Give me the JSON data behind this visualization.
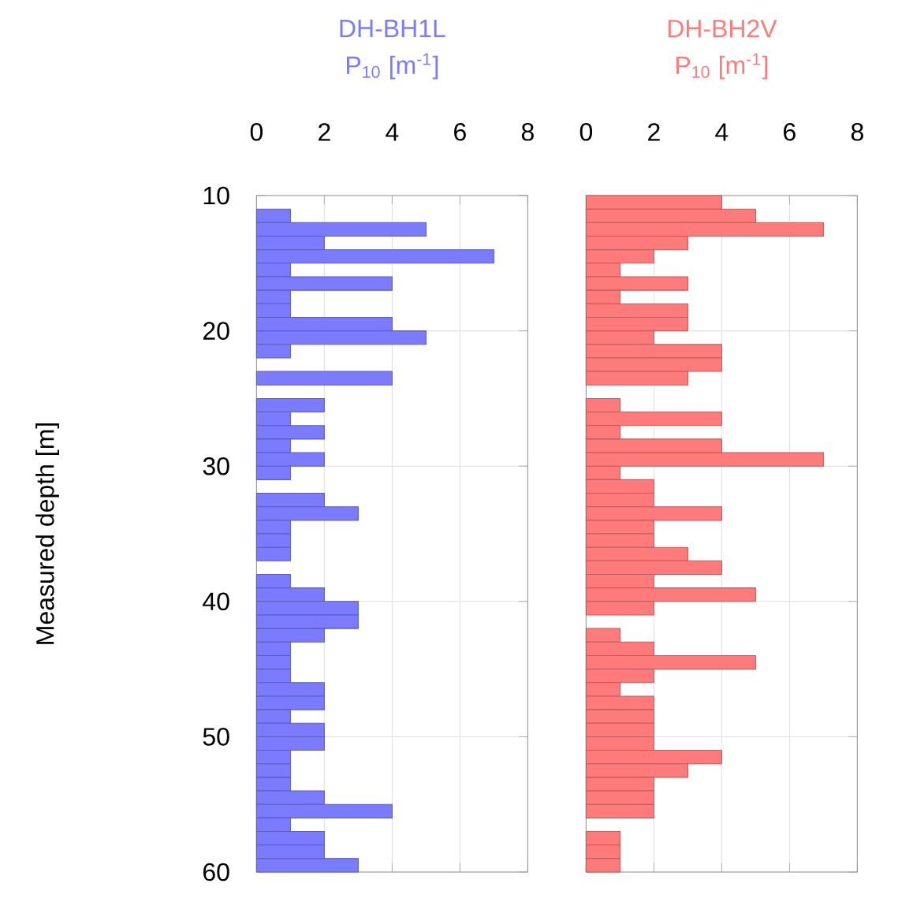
{
  "chart_data": [
    {
      "type": "bar",
      "orientation": "horizontal",
      "title": "DH-BH1L",
      "subtitle": "P$_{10}$ [m$^{-1}$]",
      "ylabel": "Measured depth [m]",
      "x": [
        11.5,
        12.5,
        13.5,
        14.5,
        15.5,
        16.5,
        17.5,
        18.5,
        19.5,
        20.5,
        21.5,
        22.5,
        23.5,
        24.5,
        25.5,
        26.5,
        27.5,
        28.5,
        29.5,
        30.5,
        31.5,
        32.5,
        33.5,
        34.5,
        35.5,
        36.5,
        37.5,
        38.5,
        39.5,
        40.5,
        41.5,
        42.5,
        43.5,
        44.5,
        45.5,
        46.5,
        47.5,
        48.5,
        49.5,
        50.5,
        51.5,
        52.5,
        53.5,
        54.5,
        55.5,
        56.5,
        57.5,
        58.5,
        59.5
      ],
      "series": [
        {
          "color": "#7b7bff",
          "values": [
            1,
            5,
            2,
            7,
            1,
            4,
            1,
            1,
            4,
            5,
            1,
            null,
            4,
            null,
            2,
            1,
            2,
            1,
            2,
            1,
            null,
            2,
            3,
            1,
            1,
            1,
            null,
            1,
            2,
            3,
            3,
            2,
            1,
            1,
            1,
            2,
            2,
            1,
            2,
            2,
            1,
            1,
            1,
            2,
            4,
            1,
            2,
            2,
            3
          ]
        }
      ],
      "xlim": [
        0,
        8
      ],
      "xticks": [
        0,
        2,
        4,
        6,
        8
      ],
      "ylim": [
        60,
        10
      ],
      "yticks": [
        10,
        20,
        30,
        40,
        50,
        60
      ],
      "grid": true
    },
    {
      "type": "bar",
      "orientation": "horizontal",
      "title": "DH-BH2V",
      "subtitle": "P$_{10}$ [m$^{-1}$]",
      "x": [
        10.5,
        11.5,
        12.5,
        13.5,
        14.5,
        15.5,
        16.5,
        17.5,
        18.5,
        19.5,
        20.5,
        21.5,
        22.5,
        23.5,
        24.5,
        25.5,
        26.5,
        27.5,
        28.5,
        29.5,
        30.5,
        31.5,
        32.5,
        33.5,
        34.5,
        35.5,
        36.5,
        37.5,
        38.5,
        39.5,
        40.5,
        41.5,
        42.5,
        43.5,
        44.5,
        45.5,
        46.5,
        47.5,
        48.5,
        49.5,
        50.5,
        51.5,
        52.5,
        53.5,
        54.5,
        55.5,
        56.5,
        57.5,
        58.5,
        59.5
      ],
      "series": [
        {
          "color": "#ff7b7b",
          "values": [
            4,
            5,
            7,
            3,
            2,
            1,
            3,
            1,
            3,
            3,
            2,
            4,
            4,
            3,
            null,
            1,
            4,
            1,
            4,
            7,
            1,
            2,
            2,
            4,
            2,
            2,
            3,
            4,
            2,
            5,
            2,
            null,
            1,
            2,
            5,
            2,
            1,
            2,
            2,
            2,
            2,
            4,
            3,
            2,
            2,
            2,
            null,
            1,
            1,
            1
          ]
        }
      ],
      "xlim": [
        0,
        8
      ],
      "xticks": [
        0,
        2,
        4,
        6,
        8
      ],
      "ylim": [
        60,
        10
      ],
      "yticks": [
        10,
        20,
        30,
        40,
        50,
        60
      ],
      "grid": true,
      "tick_labels": "x"
    }
  ]
}
